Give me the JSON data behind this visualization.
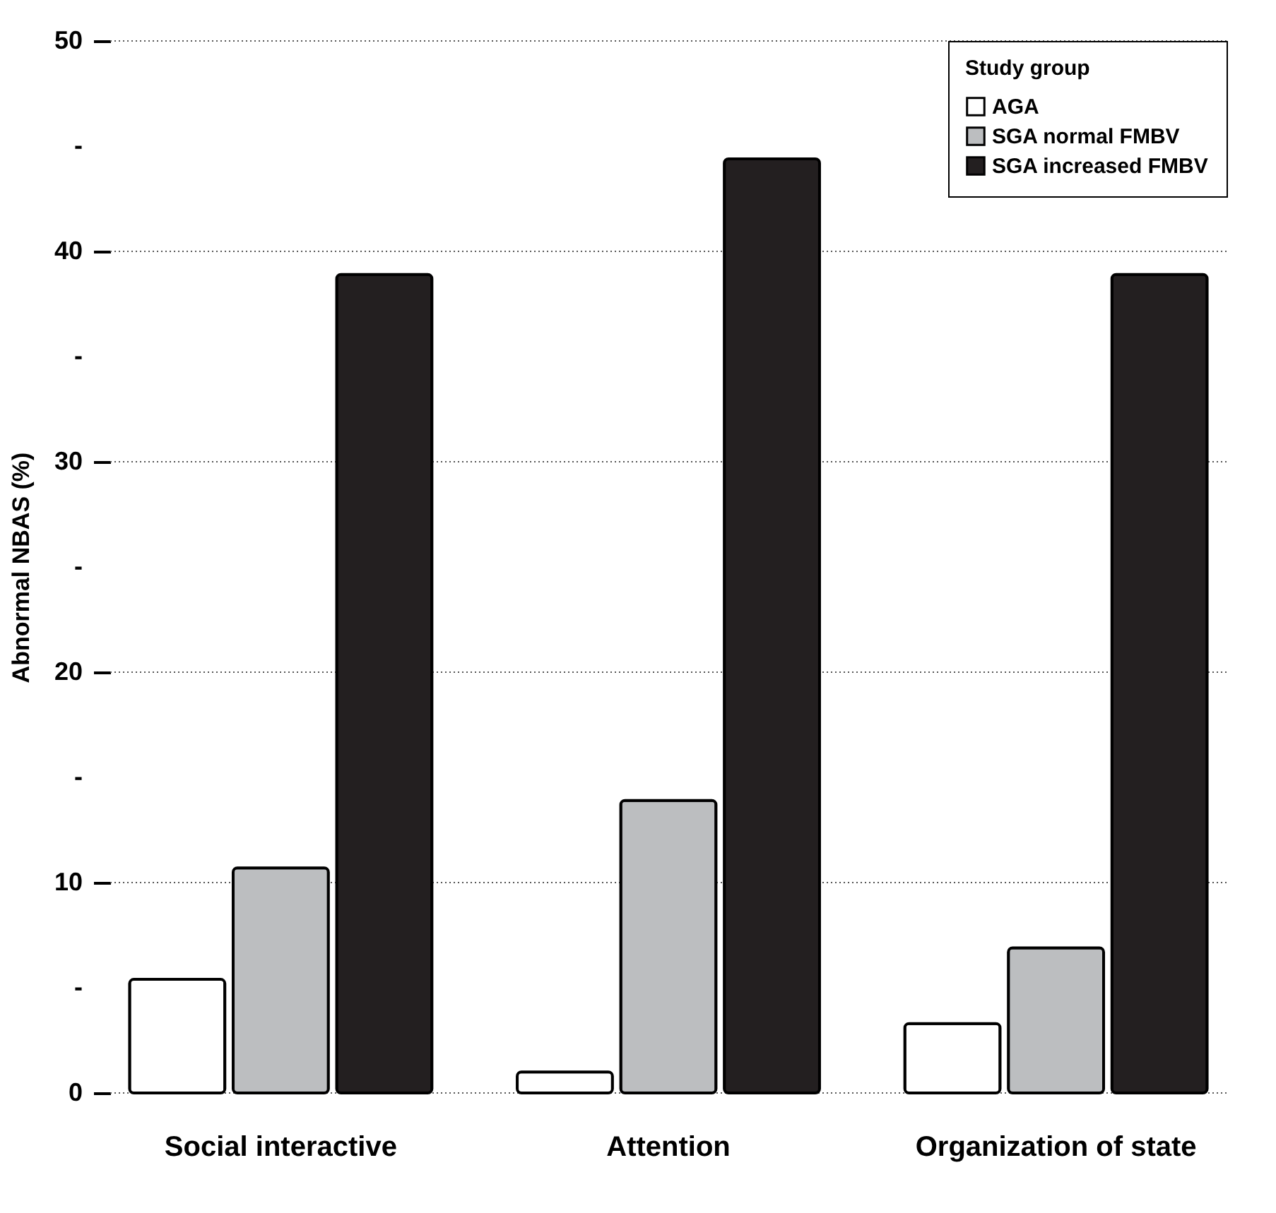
{
  "chart_data": {
    "type": "bar",
    "ylabel": "Abnormal NBAS (%)",
    "legend_title": "Study group",
    "categories": [
      "Social interactive",
      "Attention",
      "Organization of state"
    ],
    "series": [
      {
        "name": "AGA",
        "color": "#ffffff",
        "values": [
          5.4,
          1.0,
          3.3
        ]
      },
      {
        "name": "SGA normal FMBV",
        "color": "#bcbec0",
        "values": [
          10.7,
          13.9,
          6.9
        ]
      },
      {
        "name": "SGA increased FMBV",
        "color": "#231f20",
        "values": [
          38.9,
          44.4,
          38.9
        ]
      }
    ],
    "ylim": [
      0,
      50
    ],
    "yticks": [
      0,
      {
        "value": 5,
        "label": "-"
      },
      10,
      {
        "value": 15,
        "label": "-"
      },
      20,
      {
        "value": 25,
        "label": "-"
      },
      30,
      {
        "value": 35,
        "label": "-"
      },
      40,
      {
        "value": 45,
        "label": "-"
      },
      50
    ],
    "grid": "y",
    "legend": "top right"
  }
}
